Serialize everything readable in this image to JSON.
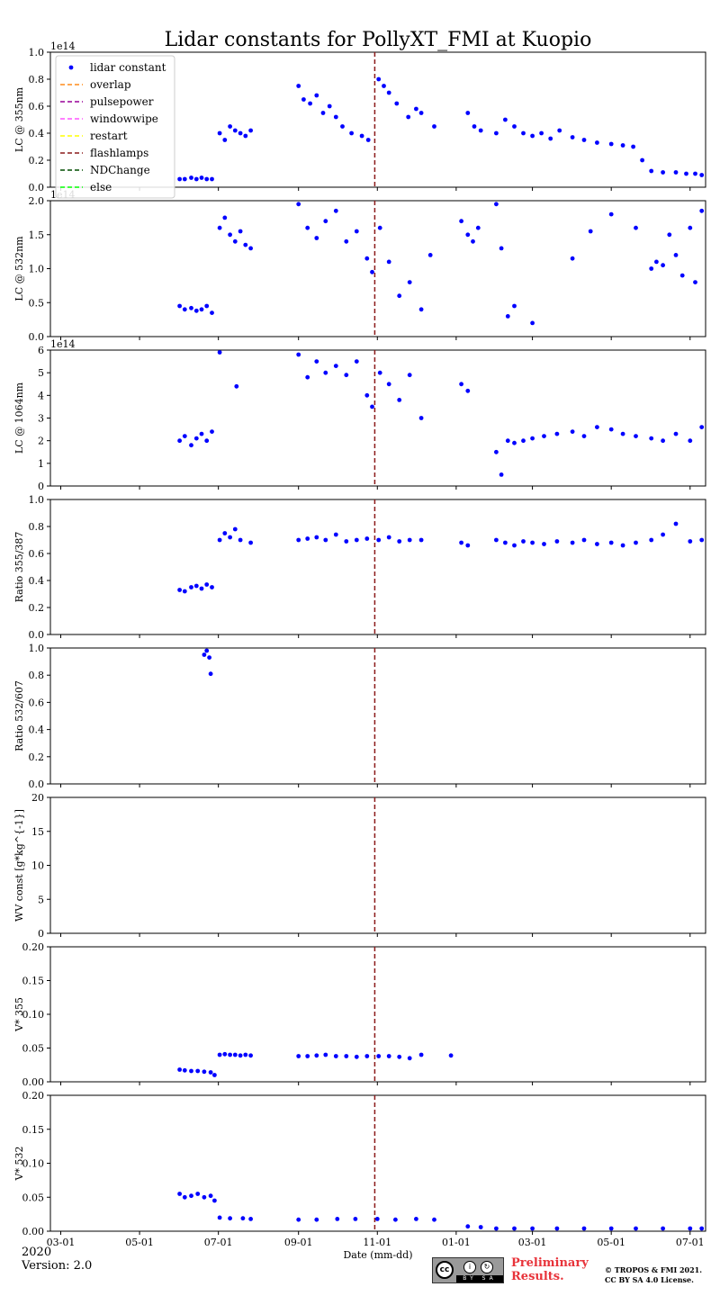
{
  "chart_data": {
    "type": "scatter",
    "title": "Lidar constants for PollyXT_FMI at Kuopio",
    "xlabel": "Date (mm-dd)",
    "x_ticks": [
      "03-01",
      "05-01",
      "07-01",
      "09-01",
      "11-01",
      "01-01",
      "03-01",
      "05-01",
      "07-01"
    ],
    "x_tick_dates": [
      "2020-03-01",
      "2020-05-01",
      "2020-07-01",
      "2020-09-01",
      "2020-11-01",
      "2021-01-01",
      "2021-03-01",
      "2021-05-01",
      "2021-07-01"
    ],
    "xlim": [
      "2020-02-22",
      "2021-07-13"
    ],
    "event_line": {
      "date": "2020-10-30",
      "label": "flashlamps",
      "color": "#8b1a1a"
    },
    "grid": false,
    "legend": {
      "location": "upper-left",
      "entries": [
        {
          "label": "lidar constant",
          "marker": "dot",
          "color": "#0000ff"
        },
        {
          "label": "overlap",
          "marker": "dash",
          "color": "#ff8c1a"
        },
        {
          "label": "pulsepower",
          "marker": "dash",
          "color": "#990099"
        },
        {
          "label": "windowwipe",
          "marker": "dash",
          "color": "#ff55ff"
        },
        {
          "label": "restart",
          "marker": "dash",
          "color": "#ffff00"
        },
        {
          "label": "flashlamps",
          "marker": "dash",
          "color": "#8b1a1a"
        },
        {
          "label": "NDChange",
          "marker": "dash",
          "color": "#004d00"
        },
        {
          "label": "else",
          "marker": "dash",
          "color": "#00ff00"
        }
      ]
    },
    "panels": [
      {
        "ylabel": "LC @ 355nm",
        "ylim": [
          0,
          1.0
        ],
        "offset_text": "1e14",
        "yticks": [
          "0.0",
          "0.2",
          "0.4",
          "0.6",
          "0.8",
          "1.0"
        ],
        "series": [
          {
            "x": [
              "2020-06-01",
              "2020-06-05",
              "2020-06-10",
              "2020-06-14",
              "2020-06-18",
              "2020-06-22",
              "2020-06-26",
              "2020-07-02",
              "2020-07-06",
              "2020-07-10",
              "2020-07-14",
              "2020-07-18",
              "2020-07-22",
              "2020-07-26",
              "2020-09-01",
              "2020-09-05",
              "2020-09-10",
              "2020-09-15",
              "2020-09-20",
              "2020-09-25",
              "2020-09-30",
              "2020-10-05",
              "2020-10-12",
              "2020-10-20",
              "2020-10-25",
              "2020-11-02",
              "2020-11-06",
              "2020-11-10",
              "2020-11-16",
              "2020-11-25",
              "2020-12-01",
              "2020-12-05",
              "2020-12-15",
              "2021-01-10",
              "2021-01-15",
              "2021-01-20",
              "2021-02-01",
              "2021-02-08",
              "2021-02-15",
              "2021-02-22",
              "2021-03-01",
              "2021-03-08",
              "2021-03-15",
              "2021-03-22",
              "2021-04-01",
              "2021-04-10",
              "2021-04-20",
              "2021-05-01",
              "2021-05-10",
              "2021-05-18",
              "2021-05-25",
              "2021-06-01",
              "2021-06-10",
              "2021-06-20",
              "2021-06-28",
              "2021-07-05",
              "2021-07-10"
            ],
            "y": [
              0.06,
              0.06,
              0.07,
              0.06,
              0.07,
              0.06,
              0.06,
              0.4,
              0.35,
              0.45,
              0.42,
              0.4,
              0.38,
              0.42,
              0.75,
              0.65,
              0.62,
              0.68,
              0.55,
              0.6,
              0.52,
              0.45,
              0.4,
              0.38,
              0.35,
              0.8,
              0.75,
              0.7,
              0.62,
              0.52,
              0.58,
              0.55,
              0.45,
              0.55,
              0.45,
              0.42,
              0.4,
              0.5,
              0.45,
              0.4,
              0.38,
              0.4,
              0.36,
              0.42,
              0.37,
              0.35,
              0.33,
              0.32,
              0.31,
              0.3,
              0.2,
              0.12,
              0.11,
              0.11,
              0.1,
              0.1,
              0.09
            ]
          }
        ]
      },
      {
        "ylabel": "LC @ 532nm",
        "ylim": [
          0,
          2.0
        ],
        "offset_text": "1e14",
        "yticks": [
          "0.0",
          "0.5",
          "1.0",
          "1.5",
          "2.0"
        ],
        "series": [
          {
            "x": [
              "2020-06-01",
              "2020-06-05",
              "2020-06-10",
              "2020-06-14",
              "2020-06-18",
              "2020-06-22",
              "2020-06-26",
              "2020-07-02",
              "2020-07-06",
              "2020-07-10",
              "2020-07-14",
              "2020-07-18",
              "2020-07-22",
              "2020-07-26",
              "2020-09-01",
              "2020-09-08",
              "2020-09-15",
              "2020-09-22",
              "2020-09-30",
              "2020-10-08",
              "2020-10-16",
              "2020-10-24",
              "2020-10-28",
              "2020-11-03",
              "2020-11-10",
              "2020-11-18",
              "2020-11-26",
              "2020-12-05",
              "2020-12-12",
              "2021-01-05",
              "2021-01-10",
              "2021-01-14",
              "2021-01-18",
              "2021-02-01",
              "2021-02-05",
              "2021-02-10",
              "2021-02-15",
              "2021-03-01",
              "2021-04-01",
              "2021-04-15",
              "2021-05-01",
              "2021-05-20",
              "2021-06-01",
              "2021-06-05",
              "2021-06-10",
              "2021-06-15",
              "2021-06-20",
              "2021-06-25",
              "2021-07-01",
              "2021-07-05",
              "2021-07-10"
            ],
            "y": [
              0.45,
              0.4,
              0.42,
              0.38,
              0.4,
              0.45,
              0.35,
              1.6,
              1.75,
              1.5,
              1.4,
              1.55,
              1.35,
              1.3,
              1.95,
              1.6,
              1.45,
              1.7,
              1.85,
              1.4,
              1.55,
              1.15,
              0.95,
              1.6,
              1.1,
              0.6,
              0.8,
              0.4,
              1.2,
              1.7,
              1.5,
              1.4,
              1.6,
              1.95,
              1.3,
              0.3,
              0.45,
              0.2,
              1.15,
              1.55,
              1.8,
              1.6,
              1.0,
              1.1,
              1.05,
              1.5,
              1.2,
              0.9,
              1.6,
              0.8,
              1.85
            ]
          }
        ]
      },
      {
        "ylabel": "LC @ 1064nm",
        "ylim": [
          0,
          6
        ],
        "offset_text": "1e14",
        "yticks": [
          "0",
          "1",
          "2",
          "3",
          "4",
          "5",
          "6"
        ],
        "series": [
          {
            "x": [
              "2020-06-01",
              "2020-06-05",
              "2020-06-10",
              "2020-06-14",
              "2020-06-18",
              "2020-06-22",
              "2020-06-26",
              "2020-07-02",
              "2020-07-15",
              "2020-09-01",
              "2020-09-08",
              "2020-09-15",
              "2020-09-22",
              "2020-09-30",
              "2020-10-08",
              "2020-10-16",
              "2020-10-24",
              "2020-10-28",
              "2020-11-03",
              "2020-11-10",
              "2020-11-18",
              "2020-11-26",
              "2020-12-05",
              "2021-01-05",
              "2021-01-10",
              "2021-02-01",
              "2021-02-05",
              "2021-02-10",
              "2021-02-15",
              "2021-02-22",
              "2021-03-01",
              "2021-03-10",
              "2021-03-20",
              "2021-04-01",
              "2021-04-10",
              "2021-04-20",
              "2021-05-01",
              "2021-05-10",
              "2021-05-20",
              "2021-06-01",
              "2021-06-10",
              "2021-06-20",
              "2021-07-01",
              "2021-07-10"
            ],
            "y": [
              2.0,
              2.2,
              1.8,
              2.1,
              2.3,
              2.0,
              2.4,
              5.9,
              4.4,
              5.8,
              4.8,
              5.5,
              5.0,
              5.3,
              4.9,
              5.5,
              4.0,
              3.5,
              5.0,
              4.5,
              3.8,
              4.9,
              3.0,
              4.5,
              4.2,
              1.5,
              0.5,
              2.0,
              1.9,
              2.0,
              2.1,
              2.2,
              2.3,
              2.4,
              2.2,
              2.6,
              2.5,
              2.3,
              2.2,
              2.1,
              2.0,
              2.3,
              2.0,
              2.6
            ]
          }
        ]
      },
      {
        "ylabel": "Ratio 355/387",
        "ylim": [
          0,
          1.0
        ],
        "yticks": [
          "0.0",
          "0.2",
          "0.4",
          "0.6",
          "0.8",
          "1.0"
        ],
        "series": [
          {
            "x": [
              "2020-06-01",
              "2020-06-05",
              "2020-06-10",
              "2020-06-14",
              "2020-06-18",
              "2020-06-22",
              "2020-06-26",
              "2020-07-02",
              "2020-07-06",
              "2020-07-10",
              "2020-07-14",
              "2020-07-18",
              "2020-07-26",
              "2020-09-01",
              "2020-09-08",
              "2020-09-15",
              "2020-09-22",
              "2020-09-30",
              "2020-10-08",
              "2020-10-16",
              "2020-10-24",
              "2020-11-02",
              "2020-11-10",
              "2020-11-18",
              "2020-11-26",
              "2020-12-05",
              "2021-01-05",
              "2021-01-10",
              "2021-02-01",
              "2021-02-08",
              "2021-02-15",
              "2021-02-22",
              "2021-03-01",
              "2021-03-10",
              "2021-03-20",
              "2021-04-01",
              "2021-04-10",
              "2021-04-20",
              "2021-05-01",
              "2021-05-10",
              "2021-05-20",
              "2021-06-01",
              "2021-06-10",
              "2021-06-20",
              "2021-07-01",
              "2021-07-10"
            ],
            "y": [
              0.33,
              0.32,
              0.35,
              0.36,
              0.34,
              0.37,
              0.35,
              0.7,
              0.75,
              0.72,
              0.78,
              0.7,
              0.68,
              0.7,
              0.71,
              0.72,
              0.7,
              0.74,
              0.69,
              0.7,
              0.71,
              0.7,
              0.72,
              0.69,
              0.7,
              0.7,
              0.68,
              0.66,
              0.7,
              0.68,
              0.66,
              0.69,
              0.68,
              0.67,
              0.69,
              0.68,
              0.7,
              0.67,
              0.68,
              0.66,
              0.68,
              0.7,
              0.74,
              0.82,
              0.69,
              0.7
            ]
          }
        ]
      },
      {
        "ylabel": "Ratio 532/607",
        "ylim": [
          0,
          1.0
        ],
        "yticks": [
          "0.0",
          "0.2",
          "0.4",
          "0.6",
          "0.8",
          "1.0"
        ],
        "series": [
          {
            "x": [
              "2020-06-20",
              "2020-06-22",
              "2020-06-24",
              "2020-06-25"
            ],
            "y": [
              0.95,
              0.98,
              0.93,
              0.81
            ]
          }
        ]
      },
      {
        "ylabel": "WV const [g*kg^{-1}]",
        "ylim": [
          0,
          20
        ],
        "yticks": [
          "0",
          "5",
          "10",
          "15",
          "20"
        ],
        "series": []
      },
      {
        "ylabel": "V* 355",
        "ylim": [
          0,
          0.2
        ],
        "yticks": [
          "0.00",
          "0.05",
          "0.10",
          "0.15",
          "0.20"
        ],
        "series": [
          {
            "x": [
              "2020-06-01",
              "2020-06-05",
              "2020-06-10",
              "2020-06-15",
              "2020-06-20",
              "2020-06-25",
              "2020-06-28",
              "2020-07-02",
              "2020-07-06",
              "2020-07-10",
              "2020-07-14",
              "2020-07-18",
              "2020-07-22",
              "2020-07-26",
              "2020-09-01",
              "2020-09-08",
              "2020-09-15",
              "2020-09-22",
              "2020-09-30",
              "2020-10-08",
              "2020-10-16",
              "2020-10-24",
              "2020-11-02",
              "2020-11-10",
              "2020-11-18",
              "2020-11-26",
              "2020-12-05",
              "2020-12-28"
            ],
            "y": [
              0.018,
              0.017,
              0.016,
              0.016,
              0.015,
              0.014,
              0.01,
              0.04,
              0.041,
              0.04,
              0.04,
              0.039,
              0.04,
              0.039,
              0.038,
              0.038,
              0.039,
              0.04,
              0.038,
              0.038,
              0.037,
              0.038,
              0.038,
              0.038,
              0.037,
              0.035,
              0.04,
              0.039
            ]
          }
        ]
      },
      {
        "ylabel": "V* 532",
        "ylim": [
          0,
          0.2
        ],
        "yticks": [
          "0.00",
          "0.05",
          "0.10",
          "0.15",
          "0.20"
        ],
        "series": [
          {
            "x": [
              "2020-06-01",
              "2020-06-05",
              "2020-06-10",
              "2020-06-15",
              "2020-06-20",
              "2020-06-25",
              "2020-06-28",
              "2020-07-02",
              "2020-07-10",
              "2020-07-20",
              "2020-07-26",
              "2020-09-01",
              "2020-09-15",
              "2020-10-01",
              "2020-10-15",
              "2020-11-01",
              "2020-11-15",
              "2020-12-01",
              "2020-12-15",
              "2021-01-10",
              "2021-01-20",
              "2021-02-01",
              "2021-02-15",
              "2021-03-01",
              "2021-03-20",
              "2021-04-10",
              "2021-05-01",
              "2021-05-20",
              "2021-06-10",
              "2021-07-01",
              "2021-07-10"
            ],
            "y": [
              0.055,
              0.05,
              0.052,
              0.055,
              0.05,
              0.052,
              0.045,
              0.02,
              0.019,
              0.019,
              0.018,
              0.017,
              0.017,
              0.018,
              0.018,
              0.018,
              0.017,
              0.018,
              0.017,
              0.007,
              0.006,
              0.004,
              0.004,
              0.004,
              0.004,
              0.004,
              0.004,
              0.004,
              0.004,
              0.004,
              0.004
            ]
          }
        ]
      }
    ]
  },
  "footer": {
    "year": "2020",
    "version": "Version: 2.0",
    "preliminary_line1": "Preliminary",
    "preliminary_line2": "Results.",
    "copyright_line1": "© TROPOS & FMI 2021.",
    "copyright_line2": "CC BY SA 4.0 License.",
    "license_badge": {
      "cc": "cc",
      "by": "BY",
      "sa": "SA"
    }
  }
}
